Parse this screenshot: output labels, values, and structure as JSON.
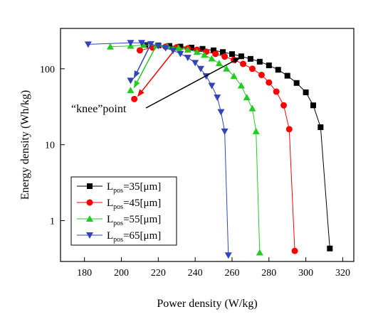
{
  "chart_data": {
    "type": "line",
    "x_label": "Power density (W/kg)",
    "y_label": "Energy density (Wh/kg)",
    "xlim": [
      167,
      326
    ],
    "xticks": [
      180,
      200,
      220,
      240,
      260,
      280,
      300,
      320
    ],
    "ylim": [
      0.29,
      340
    ],
    "yticks": [
      1,
      10,
      100
    ],
    "log_y": true,
    "annotation": "“knee”point",
    "series": [
      {
        "name": {
          "base": "L",
          "sub": "pos",
          "rest": "=35[μm]"
        },
        "color": "#000000",
        "marker": "square",
        "x": [
          213,
          220,
          226,
          232,
          238,
          244,
          250,
          255,
          260,
          265,
          270,
          275,
          280,
          285,
          290,
          295,
          300,
          304,
          308,
          313
        ],
        "values": [
          205,
          203,
          200,
          196,
          190,
          183,
          175,
          166,
          156,
          146,
          135,
          124,
          111,
          97,
          81,
          65,
          49,
          33,
          17,
          0.43
        ]
      },
      {
        "name": {
          "base": "L",
          "sub": "pos",
          "rest": "=45[μm]"
        },
        "color": "#ff0000",
        "marker": "circle",
        "x": [
          210,
          217,
          224,
          230,
          236,
          241,
          246,
          251,
          256,
          261,
          266,
          271,
          276,
          280,
          284,
          288,
          291,
          294
        ],
        "values": [
          175,
          190,
          195,
          192,
          186,
          178,
          168,
          157,
          145,
          131,
          116,
          100,
          83,
          66,
          50,
          33,
          16,
          0.4
        ],
        "knee": [
          207,
          40
        ]
      },
      {
        "name": {
          "base": "L",
          "sub": "pos",
          "rest": "=55[μm]"
        },
        "color": "#22cc22",
        "marker": "triangle-up",
        "x": [
          194,
          205,
          212,
          219,
          225,
          231,
          236,
          241,
          245,
          249,
          253,
          257,
          261,
          265,
          268,
          271,
          273,
          275
        ],
        "values": [
          195,
          200,
          205,
          203,
          197,
          188,
          178,
          166,
          152,
          136,
          118,
          100,
          80,
          60,
          42,
          30,
          15,
          0.38
        ],
        "knee": [
          205,
          52
        ]
      },
      {
        "name": {
          "base": "L",
          "sub": "pos",
          "rest": "=65[μm]"
        },
        "color": "#3344bb",
        "marker": "triangle-down",
        "x": [
          182,
          205,
          211,
          216,
          220,
          224,
          228,
          232,
          236,
          240,
          243,
          246,
          249,
          252,
          254,
          256,
          258
        ],
        "values": [
          210,
          220,
          220,
          212,
          200,
          188,
          174,
          158,
          140,
          120,
          100,
          80,
          60,
          42,
          27,
          15,
          0.35
        ],
        "knee": [
          205,
          70
        ]
      }
    ]
  }
}
